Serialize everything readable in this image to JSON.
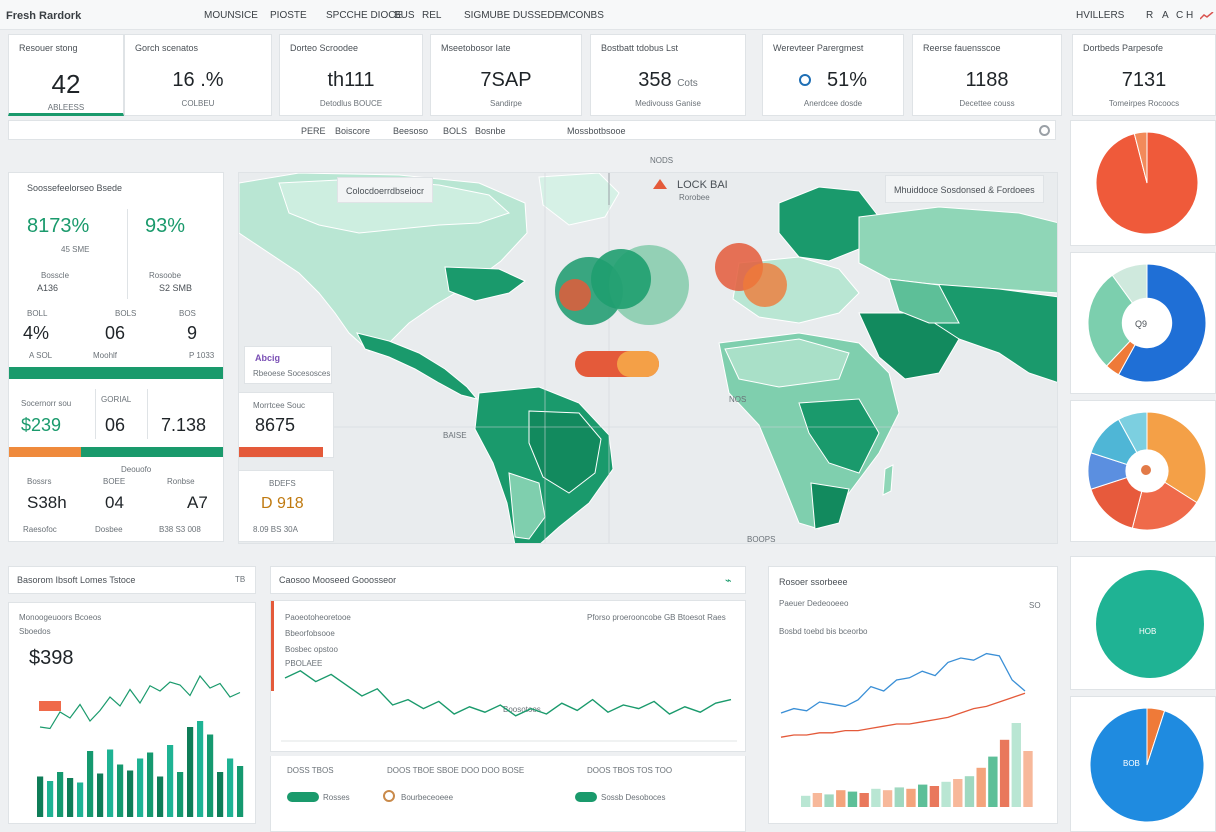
{
  "header": {
    "brand": "Fresh Rardork",
    "nav": [
      "MOUNSICE",
      "PIOSTE",
      "SPCCHE DIOCE",
      "BUS",
      "REL",
      "SIGMUBE DUSSEDE",
      "MCONBS"
    ],
    "user": "HVILLERS",
    "actions": [
      "R",
      "A",
      "C H"
    ]
  },
  "kpis": [
    {
      "label": "Resouer stong",
      "value": "42",
      "sub": "ABLEESS"
    },
    {
      "label": "Gorch scenatos",
      "value": "16 .%",
      "sub": "COLBEU"
    },
    {
      "label": "Dorteo Scroodee",
      "value": "th111",
      "sub": "Detodlus BOUCE"
    },
    {
      "label": "Mseetobosor Iate",
      "value": "7SAP",
      "sub": "Sandirpe"
    },
    {
      "label": "Bostbatt tdobus Lst",
      "value": "358",
      "sub": "Medivouss Ganise",
      "unit": "Cots"
    },
    {
      "label": "Werevteer Parergmest",
      "value": "51%",
      "sub": "Anerdcee dosde"
    },
    {
      "label": "Reerse fauensscoe",
      "value": "1188",
      "sub": "Decettee couss"
    },
    {
      "label": "Dortbeds Parpesofe",
      "value": "7131",
      "sub": "Tomeirpes Rocoocs"
    }
  ],
  "filters": {
    "items": [
      "PERE",
      "Boiscore",
      "Beesoso",
      "BOLS",
      "Bosnbe",
      "Mossbotbsooe"
    ]
  },
  "left_panel": {
    "title": "Soossefeelorseo Bsede",
    "metric_a": "8173%",
    "metric_a_sub": "45 SME",
    "metric_b": "93%",
    "row1": [
      {
        "label": "Bosscle",
        "value": "A136"
      },
      {
        "label": "Rosoobe",
        "value": "S2 SMB"
      }
    ],
    "row2": [
      {
        "label": "BOLL",
        "value": "4%"
      },
      {
        "label": "BOLS",
        "value": "06"
      },
      {
        "label": "BOS",
        "value": "9"
      }
    ],
    "row2_sub": [
      "A SOL",
      "Moohlf",
      "P 1033"
    ],
    "row3_label": "Socernorr sou",
    "row3": [
      "$239",
      "06",
      "7.138"
    ],
    "row3_head": "GORIAL",
    "row4_label": "Deouofo",
    "row4": [
      "S38h",
      "04",
      "A7"
    ],
    "row4_heads": [
      "Bossrs",
      "BOEE",
      "Ronbse"
    ],
    "row4_sub": [
      "Raesofoc",
      "Dosbee",
      "B38 S3 008"
    ]
  },
  "mid_panel": {
    "badge": "Abcig",
    "sub": "Rbeoese Socesosces",
    "title": "Morrtcee Souc",
    "value": "8675",
    "card2_label": "BDEFS",
    "card2_value": "D 918",
    "card2_sub": "8.09 BS 30A"
  },
  "map": {
    "title": "Colocdoerrdbseiocr",
    "legend": "Mhuiddoce Sosdonsed & Fordoees",
    "marker_title": "LOCK BAI",
    "marker_sub": "Rorobee",
    "top_tag": "NODS",
    "labels": [
      "BAISE",
      "NOS",
      "BOOPS"
    ]
  },
  "donuts": [
    {
      "label": "",
      "center": ""
    },
    {
      "label": "",
      "center": "Q9"
    },
    {
      "label": "",
      "center": ""
    },
    {
      "label": "HOB",
      "center": ""
    },
    {
      "label": "BOB",
      "center": ""
    }
  ],
  "bottom_left": {
    "header": "Basorom Ibsoft Lomes Tstoce",
    "header_right": "TB",
    "title": "Monoogeuoors Bcoeos",
    "sub": "Sboedos",
    "value": "$398"
  },
  "bottom_mid": {
    "header": "Caosoo Mooseed Gooosseor",
    "title": "Paoeotoheoretooe",
    "right_title": "Pforso proerooncobe GB Btoesot Raes",
    "notes": [
      "Bbeorfobsooe",
      "Bosbec opstoo",
      "PBOLAEE"
    ],
    "axis_label": "Boosotoos",
    "footer": [
      "DOSS TBOS",
      "DOOS TBOE SBOE DOO DOO BOSE",
      "DOOS TBOS TOS TOO"
    ],
    "legend": [
      "Rosses",
      "Bourbeceoeee",
      "Sossb Desoboces"
    ]
  },
  "bottom_right": {
    "header": "Rosoer ssorbeee",
    "title": "Paeuer Dedeooeeo",
    "sub": "Bosbd toebd bis bceorbo",
    "axis": "SO"
  },
  "chart_data": [
    {
      "type": "bar",
      "title": "Monoogeuoors Bcoeos",
      "categories": [
        "1",
        "2",
        "3",
        "4",
        "5",
        "6",
        "7",
        "8",
        "9",
        "10",
        "11",
        "12",
        "13",
        "14",
        "15",
        "16",
        "17",
        "18",
        "19",
        "20",
        "21"
      ],
      "values": [
        54,
        48,
        60,
        52,
        46,
        88,
        58,
        90,
        70,
        62,
        78,
        86,
        54,
        96,
        60,
        120,
        128,
        110,
        60,
        78,
        68
      ],
      "line": [
        120,
        118,
        140,
        132,
        150,
        128,
        142,
        160,
        148,
        170,
        152,
        175,
        168,
        180,
        176,
        162,
        188,
        172,
        178,
        160,
        166
      ]
    },
    {
      "type": "line",
      "title": "Paoeotoheoretooe",
      "x": [
        1,
        2,
        3,
        4,
        5,
        6,
        7,
        8,
        9,
        10,
        11,
        12,
        13,
        14,
        15,
        16,
        17,
        18,
        19,
        20,
        21,
        22,
        23,
        24,
        25,
        26,
        27,
        28,
        29,
        30
      ],
      "values": [
        70,
        78,
        66,
        74,
        62,
        50,
        58,
        40,
        46,
        36,
        44,
        30,
        38,
        32,
        40,
        28,
        36,
        30,
        42,
        34,
        46,
        32,
        40,
        36,
        44,
        30,
        38,
        32,
        42,
        46
      ]
    },
    {
      "type": "line",
      "title": "Paeuer Dedeooeeo",
      "series": [
        {
          "name": "blue",
          "values": [
            40,
            44,
            42,
            50,
            48,
            46,
            52,
            64,
            60,
            70,
            72,
            78,
            74,
            86,
            90,
            88,
            94,
            92,
            70,
            60
          ]
        },
        {
          "name": "red",
          "values": [
            18,
            20,
            20,
            22,
            22,
            24,
            24,
            26,
            28,
            30,
            30,
            32,
            34,
            36,
            40,
            44,
            46,
            50,
            54,
            58
          ]
        }
      ],
      "bars": [
        8,
        10,
        9,
        12,
        11,
        10,
        13,
        12,
        14,
        13,
        16,
        15,
        18,
        20,
        22,
        28,
        36,
        48,
        60,
        40
      ]
    }
  ]
}
